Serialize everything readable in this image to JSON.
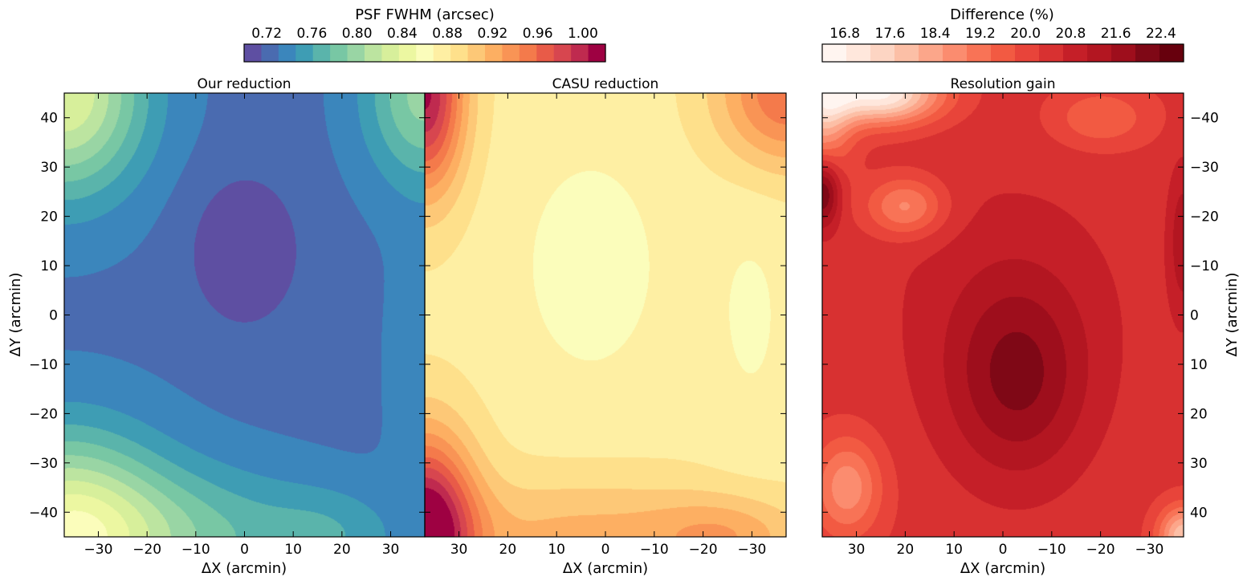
{
  "colorbars": {
    "psf": {
      "title": "PSF FWHM (arcsec)",
      "ticks": [
        "0.72",
        "0.76",
        "0.80",
        "0.84",
        "0.88",
        "0.92",
        "0.96",
        "1.00"
      ],
      "colors": [
        "#5e4fa2",
        "#4a6bb0",
        "#3b86bc",
        "#3e9db4",
        "#5ab4ab",
        "#78c7a4",
        "#99d5a4",
        "#bce4a0",
        "#d7ef9b",
        "#ecf7a1",
        "#fbfdbb",
        "#feefa3",
        "#fee08b",
        "#fdc877",
        "#fdaf62",
        "#f99455",
        "#f47a4b",
        "#e85b48",
        "#d7464f",
        "#bf2a4f",
        "#9e0142"
      ]
    },
    "diff": {
      "title": "Difference (%)",
      "ticks": [
        "16.8",
        "17.6",
        "18.4",
        "19.2",
        "20.0",
        "20.8",
        "21.6",
        "22.4"
      ],
      "colors": [
        "#fff5f0",
        "#ffe7dc",
        "#fdd5c3",
        "#fcbfa6",
        "#fca68a",
        "#fb8c6f",
        "#f87356",
        "#f25a42",
        "#e8443a",
        "#d83131",
        "#c51f28",
        "#b31621",
        "#9e0e1c",
        "#7f0816",
        "#67000d"
      ]
    }
  },
  "chart_data": [
    {
      "type": "heatmap",
      "title": "Our reduction",
      "xlabel": "ΔX (arcmin)",
      "ylabel": "ΔY (arcmin)",
      "xlim": [
        -37,
        37
      ],
      "ylim": [
        -45,
        45
      ],
      "xticks": [
        "−30",
        "−20",
        "−10",
        "0",
        "10",
        "20",
        "30"
      ],
      "yticks": [
        "40",
        "30",
        "20",
        "10",
        "0",
        "−10",
        "−20",
        "−30",
        "−40"
      ],
      "colorbar": "PSF FWHM (arcsec)",
      "zrange": [
        0.7,
        1.02
      ],
      "features": [
        {
          "kind": "minimum",
          "x": 0,
          "y": 13,
          "value": 0.7
        },
        {
          "kind": "maximum",
          "x": -37,
          "y": 45,
          "value": 0.84
        },
        {
          "kind": "maximum",
          "x": 37,
          "y": 45,
          "value": 0.79
        },
        {
          "kind": "maximum",
          "x": -37,
          "y": -45,
          "value": 0.84
        }
      ]
    },
    {
      "type": "heatmap",
      "title": "CASU reduction",
      "xlabel": "ΔX (arcmin)",
      "xlim": [
        37,
        -37
      ],
      "ylim": [
        -45,
        45
      ],
      "xticks": [
        "30",
        "20",
        "10",
        "0",
        "−10",
        "−20",
        "−30"
      ],
      "colorbar": "PSF FWHM (arcsec)",
      "zrange": [
        0.7,
        1.02
      ],
      "features": [
        {
          "kind": "minimum",
          "x": 3,
          "y": 10,
          "value": 0.85
        },
        {
          "kind": "maximum",
          "x": 37,
          "y": 45,
          "value": 1.0
        },
        {
          "kind": "maximum",
          "x": 37,
          "y": -45,
          "value": 1.0
        },
        {
          "kind": "maximum",
          "x": -37,
          "y": 45,
          "value": 0.96
        }
      ]
    },
    {
      "type": "heatmap",
      "title": "Resolution gain",
      "xlabel": "ΔX (arcmin)",
      "ylabel": "ΔY (arcmin)",
      "xlim": [
        37,
        -37
      ],
      "ylim": [
        45,
        -45
      ],
      "xticks": [
        "30",
        "20",
        "10",
        "0",
        "−10",
        "−20",
        "−30"
      ],
      "yticks": [
        "−40",
        "−30",
        "−20",
        "−10",
        "0",
        "10",
        "20",
        "30",
        "40"
      ],
      "colorbar": "Difference (%)",
      "zrange": [
        16.5,
        22.8
      ],
      "features": [
        {
          "kind": "maximum",
          "x": -3,
          "y": 13,
          "value": 21.8
        },
        {
          "kind": "maximum",
          "x": 37,
          "y": -25,
          "value": 22.6
        },
        {
          "kind": "minimum",
          "x": 25,
          "y": -45,
          "value": 16.8
        },
        {
          "kind": "minimum",
          "x": -37,
          "y": 45,
          "value": 16.8
        }
      ]
    }
  ]
}
